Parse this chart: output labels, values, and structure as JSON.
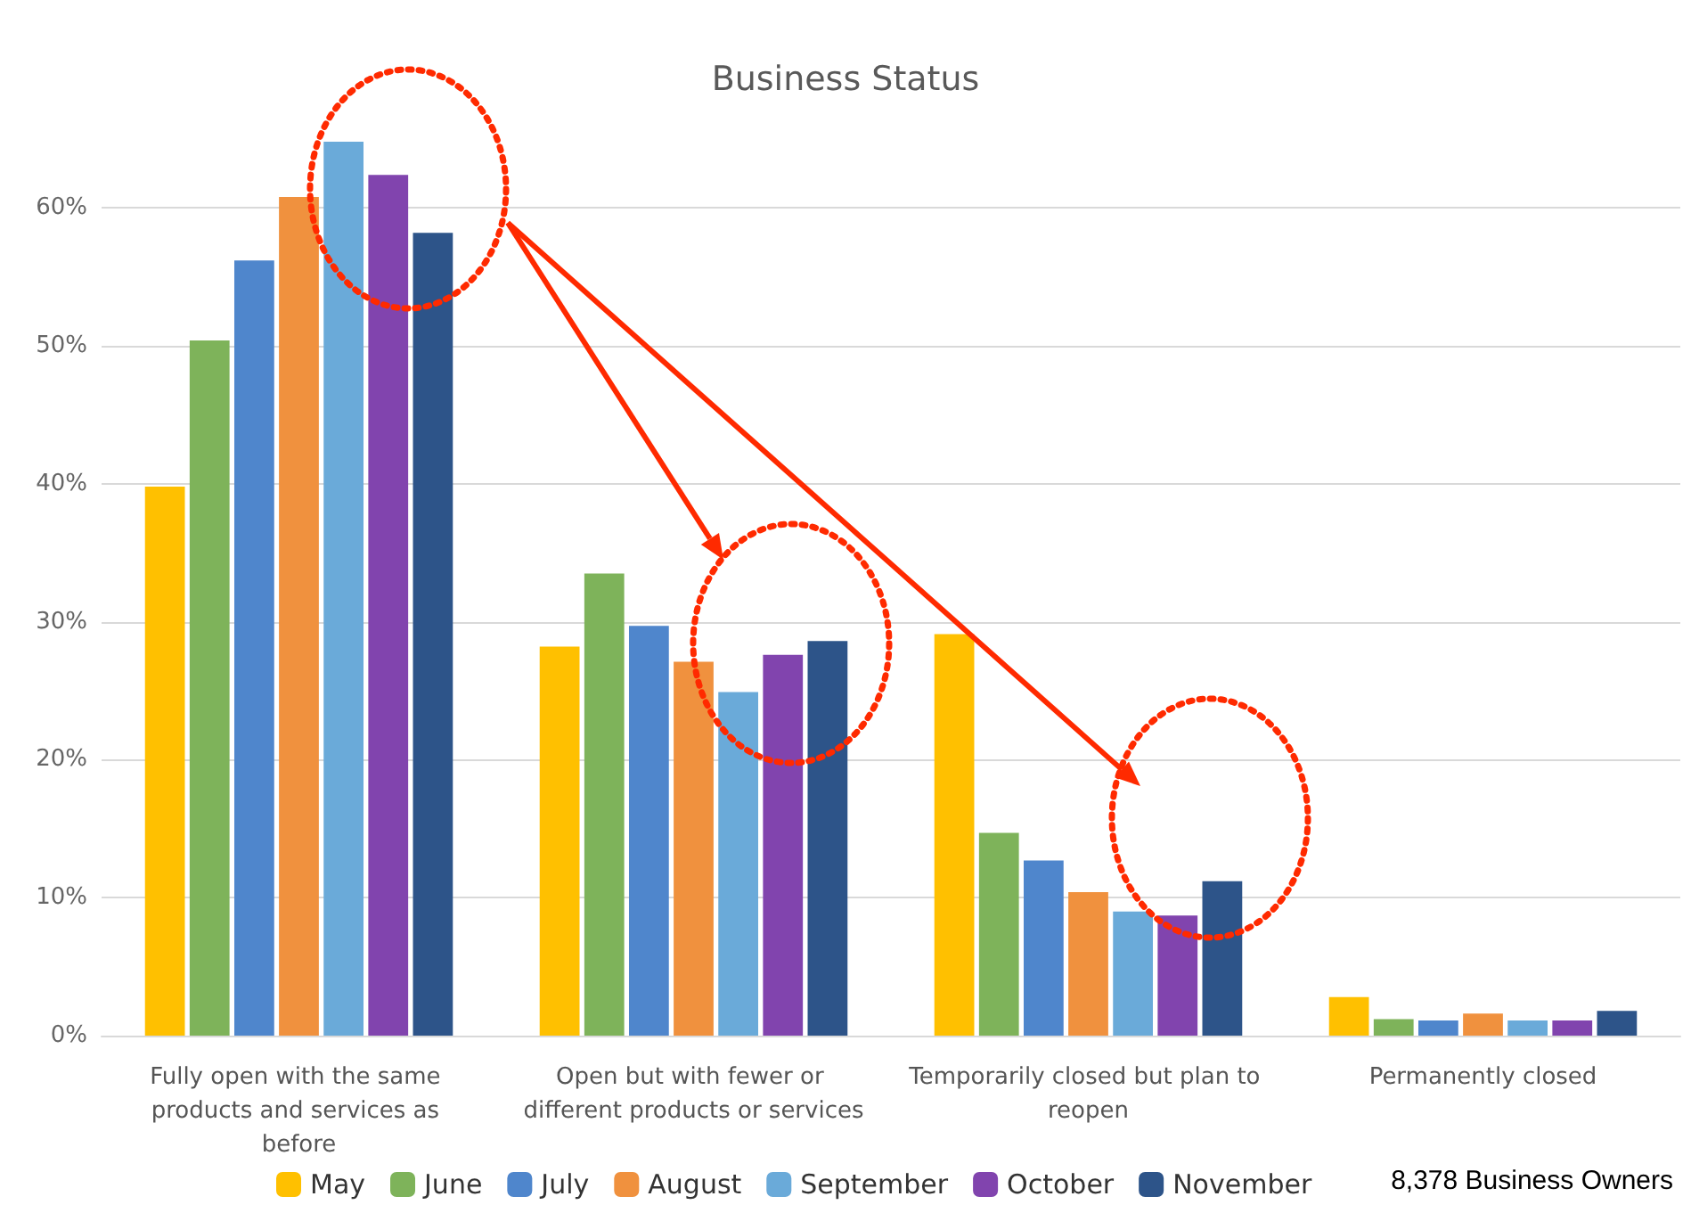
{
  "chart_data": {
    "type": "bar",
    "title": "Business Status",
    "categories": [
      "Fully open with the same products and services as before",
      "Open but with fewer or different products or services",
      "Temporarily closed but plan to reopen",
      "Permanently closed"
    ],
    "series": [
      {
        "name": "May",
        "color": "#ffc000",
        "values": [
          39.8,
          28.2,
          29.1,
          2.8
        ]
      },
      {
        "name": "June",
        "color": "#7eb35a",
        "values": [
          50.4,
          33.5,
          14.7,
          1.2
        ]
      },
      {
        "name": "July",
        "color": "#4f86cc",
        "values": [
          56.2,
          29.7,
          12.7,
          1.1
        ]
      },
      {
        "name": "August",
        "color": "#f0913e",
        "values": [
          60.8,
          27.1,
          10.4,
          1.6
        ]
      },
      {
        "name": "September",
        "color": "#6aaad9",
        "values": [
          64.8,
          24.9,
          9.0,
          1.1
        ]
      },
      {
        "name": "October",
        "color": "#8144ae",
        "values": [
          62.4,
          27.6,
          8.7,
          1.1
        ]
      },
      {
        "name": "November",
        "color": "#2d5489",
        "values": [
          58.2,
          28.6,
          11.2,
          1.8
        ]
      }
    ],
    "ylim": [
      0,
      65
    ],
    "yticks": [
      {
        "value": 0,
        "label": "0%"
      },
      {
        "value": 10,
        "label": "10%"
      },
      {
        "value": 20,
        "label": "20%"
      },
      {
        "value": 30,
        "label": "30%"
      },
      {
        "value": 40,
        "label": "40%"
      },
      {
        "value": 50,
        "label": "50%"
      },
      {
        "value": 60,
        "label": "60%"
      }
    ],
    "grid": "y",
    "legend": "bottom",
    "annotations": [
      "8,378 Business Owners"
    ]
  }
}
